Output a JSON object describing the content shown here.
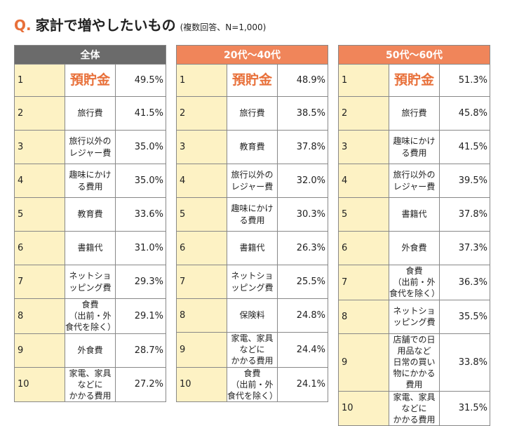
{
  "title": {
    "q": "Q.",
    "main": "家計で増やしたいもの",
    "note": "(複数回答、N=1,000)"
  },
  "colors": {
    "accent": "#e8703a",
    "header_all": "#6b6b6b",
    "header_age": "#f0855a",
    "rank_bg": "#fdf2c4"
  },
  "chart_data": [
    {
      "type": "table",
      "group": "全体",
      "columns": [
        "rank",
        "item",
        "percent"
      ],
      "rows": [
        {
          "rank": "1",
          "item": "預貯金",
          "pct": "49.5%"
        },
        {
          "rank": "2",
          "item": "旅行費",
          "pct": "41.5%"
        },
        {
          "rank": "3",
          "item": "旅行以外のレジャー費",
          "pct": "35.0%"
        },
        {
          "rank": "4",
          "item": "趣味にかける費用",
          "pct": "35.0%"
        },
        {
          "rank": "5",
          "item": "教育費",
          "pct": "33.6%"
        },
        {
          "rank": "6",
          "item": "書籍代",
          "pct": "31.0%"
        },
        {
          "rank": "7",
          "item": "ネットショッピング費",
          "pct": "29.3%"
        },
        {
          "rank": "8",
          "item": "食費\n（出前・外食代を除く）",
          "pct": "29.1%"
        },
        {
          "rank": "9",
          "item": "外食費",
          "pct": "28.7%"
        },
        {
          "rank": "10",
          "item": "家電、家具などに\nかかる費用",
          "pct": "27.2%"
        }
      ]
    },
    {
      "type": "table",
      "group": "20代〜40代",
      "columns": [
        "rank",
        "item",
        "percent"
      ],
      "rows": [
        {
          "rank": "1",
          "item": "預貯金",
          "pct": "48.9%"
        },
        {
          "rank": "2",
          "item": "旅行費",
          "pct": "38.5%"
        },
        {
          "rank": "3",
          "item": "教育費",
          "pct": "37.8%"
        },
        {
          "rank": "4",
          "item": "旅行以外のレジャー費",
          "pct": "32.0%"
        },
        {
          "rank": "5",
          "item": "趣味にかける費用",
          "pct": "30.3%"
        },
        {
          "rank": "6",
          "item": "書籍代",
          "pct": "26.3%"
        },
        {
          "rank": "7",
          "item": "ネットショッピング費",
          "pct": "25.5%"
        },
        {
          "rank": "8",
          "item": "保険料",
          "pct": "24.8%"
        },
        {
          "rank": "9",
          "item": "家電、家具などに\nかかる費用",
          "pct": "24.4%"
        },
        {
          "rank": "10",
          "item": "食費\n（出前・外食代を除く）",
          "pct": "24.1%"
        }
      ]
    },
    {
      "type": "table",
      "group": "50代〜60代",
      "columns": [
        "rank",
        "item",
        "percent"
      ],
      "rows": [
        {
          "rank": "1",
          "item": "預貯金",
          "pct": "51.3%"
        },
        {
          "rank": "2",
          "item": "旅行費",
          "pct": "45.8%"
        },
        {
          "rank": "3",
          "item": "趣味にかける費用",
          "pct": "41.5%"
        },
        {
          "rank": "4",
          "item": "旅行以外のレジャー費",
          "pct": "39.5%"
        },
        {
          "rank": "5",
          "item": "書籍代",
          "pct": "37.8%"
        },
        {
          "rank": "6",
          "item": "外食費",
          "pct": "37.3%"
        },
        {
          "rank": "7",
          "item": "食費\n（出前・外食代を除く）",
          "pct": "36.3%"
        },
        {
          "rank": "8",
          "item": "ネットショッピング費",
          "pct": "35.5%"
        },
        {
          "rank": "9",
          "item": "店舗での日用品など\n日常の買い物にかかる費用",
          "pct": "33.8%"
        },
        {
          "rank": "10",
          "item": "家電、家具などに\nかかる費用",
          "pct": "31.5%"
        }
      ]
    }
  ]
}
